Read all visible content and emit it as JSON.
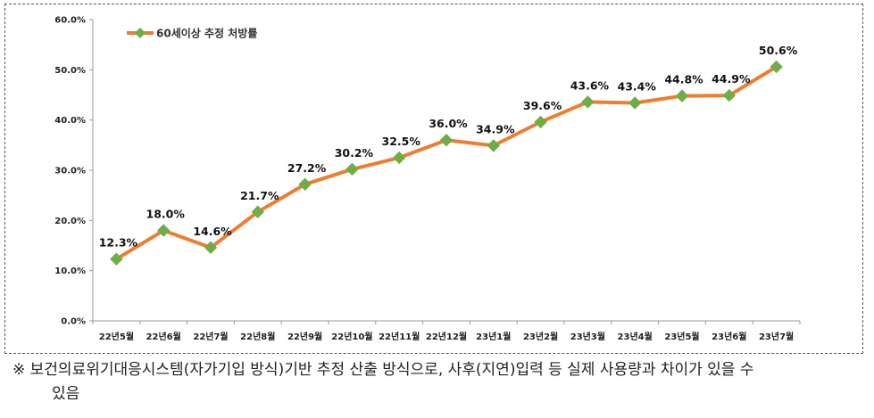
{
  "chart_data": {
    "type": "line",
    "categories": [
      "22년5월",
      "22년6월",
      "22년7월",
      "22년8월",
      "22년9월",
      "22년10월",
      "22년11월",
      "22년12월",
      "23년1월",
      "23년2월",
      "23년3월",
      "23년4월",
      "23년5월",
      "23년6월",
      "23년7월"
    ],
    "series": [
      {
        "name": "60세이상 추정 처방률",
        "values": [
          12.3,
          18.0,
          14.6,
          21.7,
          27.2,
          30.2,
          32.5,
          36.0,
          34.9,
          39.6,
          43.6,
          43.4,
          44.8,
          44.9,
          50.6
        ],
        "data_labels": [
          "12.3%",
          "18.0%",
          "14.6%",
          "21.7%",
          "27.2%",
          "30.2%",
          "32.5%",
          "36.0%",
          "34.9%",
          "39.6%",
          "43.6%",
          "43.4%",
          "44.8%",
          "44.9%",
          "50.6%"
        ]
      }
    ],
    "ylim": [
      0,
      60
    ],
    "y_ticks": [
      0,
      10,
      20,
      30,
      40,
      50,
      60
    ],
    "y_tick_labels": [
      "0.0%",
      "10.0%",
      "20.0%",
      "30.0%",
      "40.0%",
      "50.0%",
      "60.0%"
    ],
    "grid": false,
    "legend_position": "top-left",
    "title": "",
    "xlabel": "",
    "ylabel": ""
  },
  "colors": {
    "line": "#ED7D31",
    "marker": "#70AD47",
    "axis": "#999999"
  },
  "footnote": {
    "mark": "※",
    "line1": " 보건의료위기대응시스템(자가기입 방식)기반 추정 산출 방식으로, 사후(지연)입력 등 실제 사용량과 차이가 있을 수",
    "line2": "있음"
  }
}
